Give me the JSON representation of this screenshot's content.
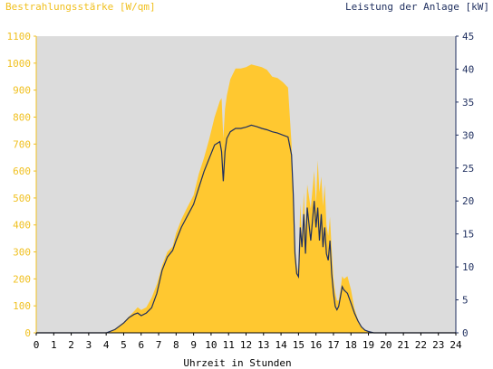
{
  "chart_data": {
    "type": "area",
    "title_left": "Bestrahlungsstärke [W/qm]",
    "title_right": "Leistung der Anlage [kW]",
    "xlabel": "Uhrzeit in Stunden",
    "xlim": [
      0,
      24
    ],
    "x_ticks": [
      "0",
      "1",
      "2",
      "3",
      "4",
      "5",
      "6",
      "7",
      "8",
      "9",
      "10",
      "11",
      "12",
      "13",
      "14",
      "15",
      "16",
      "17",
      "18",
      "19",
      "20",
      "21",
      "22",
      "23",
      "24"
    ],
    "y_left": {
      "min": 0,
      "max": 1100,
      "ticks": [
        "0",
        "100",
        "200",
        "300",
        "400",
        "500",
        "600",
        "700",
        "800",
        "900",
        "1000",
        "1100"
      ]
    },
    "y_right": {
      "min": 0,
      "max": 45,
      "ticks": [
        "0",
        "5",
        "10",
        "15",
        "20",
        "25",
        "30",
        "35",
        "40",
        "45"
      ]
    },
    "grid": false,
    "colors": {
      "plot_bg": "#dcdcdc",
      "irradiance": "#ffc830",
      "power": "#1f2f5f",
      "left_axis": "#f0c020",
      "right_axis": "#1f2f5f"
    },
    "series": [
      {
        "name": "Bestrahlungsstärke [W/qm]",
        "axis": "left",
        "style": "area",
        "x": [
          0,
          4.0,
          4.5,
          5.0,
          5.3,
          5.6,
          5.8,
          6.0,
          6.3,
          6.6,
          6.9,
          7.2,
          7.5,
          7.8,
          8.0,
          8.3,
          8.6,
          9.0,
          9.3,
          9.6,
          9.9,
          10.2,
          10.5,
          10.6,
          10.7,
          10.8,
          10.9,
          11.1,
          11.4,
          11.7,
          12.0,
          12.3,
          12.6,
          12.9,
          13.2,
          13.5,
          13.8,
          14.1,
          14.4,
          14.6,
          14.7,
          14.8,
          14.9,
          15.0,
          15.1,
          15.2,
          15.3,
          15.4,
          15.5,
          15.7,
          15.9,
          16.0,
          16.1,
          16.2,
          16.3,
          16.4,
          16.5,
          16.6,
          16.7,
          16.8,
          16.9,
          17.0,
          17.1,
          17.2,
          17.3,
          17.4,
          17.5,
          17.6,
          17.8,
          18.0,
          18.2,
          18.4,
          18.6,
          18.8,
          19.0,
          19.3,
          19.6,
          19.9,
          20.2,
          20.5,
          24
        ],
        "y": [
          0,
          0,
          15,
          40,
          60,
          80,
          95,
          85,
          95,
          130,
          180,
          250,
          300,
          320,
          370,
          420,
          460,
          510,
          590,
          650,
          720,
          800,
          860,
          870,
          720,
          830,
          880,
          940,
          980,
          980,
          985,
          995,
          990,
          985,
          975,
          950,
          945,
          930,
          910,
          700,
          500,
          320,
          250,
          220,
          480,
          350,
          520,
          380,
          550,
          460,
          600,
          480,
          640,
          520,
          580,
          470,
          550,
          400,
          360,
          430,
          310,
          200,
          150,
          120,
          120,
          160,
          210,
          200,
          210,
          160,
          90,
          50,
          25,
          10,
          5,
          0,
          0,
          0,
          0,
          0,
          0
        ]
      },
      {
        "name": "Leistung der Anlage [kW]",
        "axis": "right",
        "style": "line",
        "x": [
          0,
          4.0,
          4.5,
          5.0,
          5.3,
          5.6,
          5.8,
          6.0,
          6.3,
          6.6,
          6.9,
          7.2,
          7.5,
          7.8,
          8.0,
          8.3,
          8.6,
          9.0,
          9.3,
          9.6,
          9.9,
          10.2,
          10.5,
          10.6,
          10.7,
          10.8,
          10.9,
          11.1,
          11.4,
          11.7,
          12.0,
          12.3,
          12.6,
          12.9,
          13.2,
          13.5,
          13.8,
          14.1,
          14.4,
          14.6,
          14.7,
          14.8,
          14.9,
          15.0,
          15.1,
          15.2,
          15.3,
          15.4,
          15.5,
          15.7,
          15.9,
          16.0,
          16.1,
          16.2,
          16.3,
          16.4,
          16.5,
          16.6,
          16.7,
          16.8,
          16.9,
          17.0,
          17.1,
          17.2,
          17.3,
          17.4,
          17.5,
          17.6,
          17.8,
          18.0,
          18.2,
          18.4,
          18.6,
          18.8,
          19.0,
          19.3,
          19.6,
          19.9,
          20.2,
          20.5,
          24
        ],
        "y": [
          0,
          0,
          0.5,
          1.5,
          2.3,
          2.8,
          3.0,
          2.6,
          3.0,
          3.8,
          6.0,
          9.5,
          11.5,
          12.5,
          14.0,
          16.0,
          17.5,
          19.5,
          22.0,
          24.5,
          26.5,
          28.5,
          29.0,
          27.5,
          23.0,
          27.5,
          29.5,
          30.5,
          31.0,
          31.0,
          31.2,
          31.5,
          31.3,
          31.0,
          30.8,
          30.5,
          30.3,
          30.0,
          29.7,
          27.0,
          21.0,
          12.0,
          9.0,
          8.5,
          16.0,
          13.0,
          18.0,
          12.0,
          19.0,
          14.0,
          20.0,
          16.0,
          19.0,
          14.0,
          18.0,
          13.0,
          16.0,
          12.0,
          11.0,
          14.0,
          9.0,
          6.0,
          4.0,
          3.5,
          4.0,
          5.5,
          7.0,
          6.5,
          6.0,
          4.5,
          3.0,
          1.8,
          0.9,
          0.4,
          0.2,
          0,
          0,
          0,
          0,
          0,
          0
        ]
      }
    ]
  }
}
